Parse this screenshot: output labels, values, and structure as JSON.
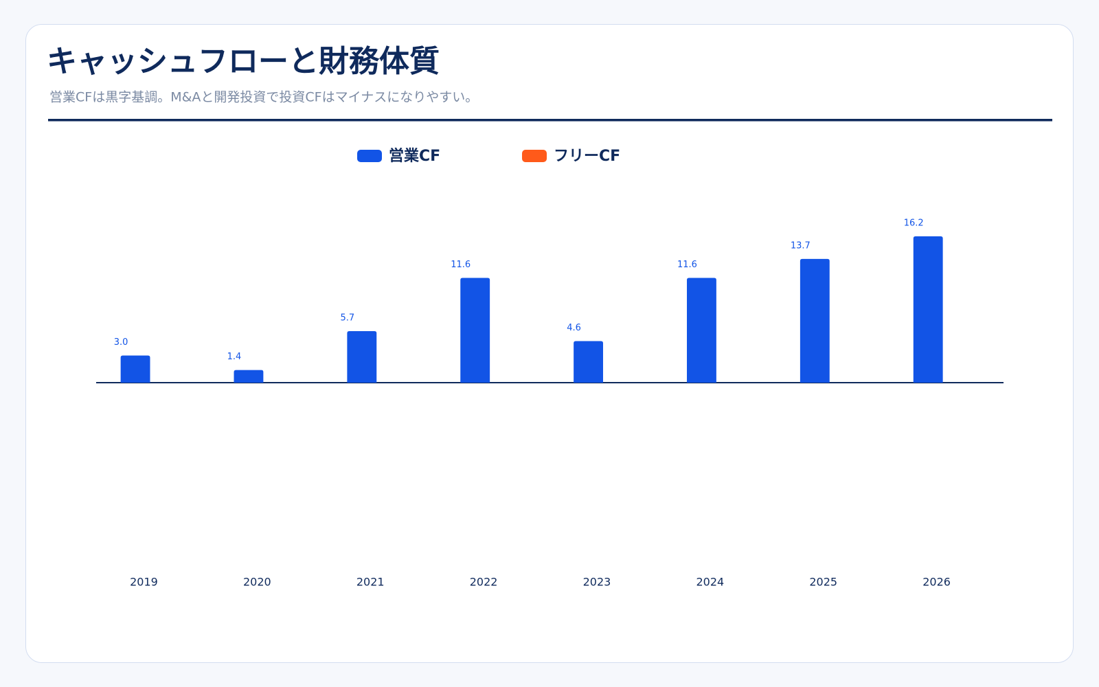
{
  "chart_data": {
    "type": "bar",
    "title": "キャッシュフローと財務体質",
    "subtitle": "営業CFは黒字基調。M&Aと開発投資で投資CFはマイナスになりやすい。",
    "categories": [
      "2019",
      "2020",
      "2021",
      "2022",
      "2023",
      "2024",
      "2025",
      "2026"
    ],
    "series": [
      {
        "name": "営業CF",
        "color": "#1254e6",
        "values": [
          3.0,
          1.4,
          5.7,
          11.6,
          4.6,
          11.6,
          13.7,
          16.2
        ],
        "value_labels": [
          "3.0",
          "1.4",
          "5.7",
          "11.6",
          "4.6",
          "11.6",
          "13.7",
          "16.2"
        ]
      },
      {
        "name": "フリーCF",
        "color": "#ff5a1a",
        "values": [
          null,
          null,
          null,
          null,
          null,
          null,
          null,
          null
        ]
      }
    ],
    "ylim": [
      -20,
      20
    ]
  }
}
